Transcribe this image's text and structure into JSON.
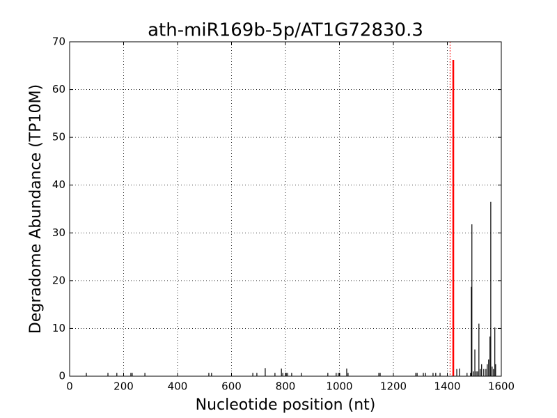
{
  "chart_data": {
    "type": "spike",
    "title": "ath-miR169b-5p/AT1G72830.3",
    "xlabel": "Nucleotide position (nt)",
    "ylabel": "Degradome Abundance (TP10M)",
    "xlim": [
      0,
      1600
    ],
    "xticks": [
      0,
      200,
      400,
      600,
      800,
      1000,
      1200,
      1400,
      1600
    ],
    "ylim": [
      0,
      70
    ],
    "yticks": [
      0,
      10,
      20,
      30,
      40,
      50,
      60,
      70
    ],
    "grid": true,
    "vlines": [
      {
        "x": 1410,
        "color": "#ff0000"
      }
    ],
    "series": [
      {
        "color": "#000000",
        "x": [
          62,
          142,
          175,
          227,
          232,
          279,
          516,
          526,
          679,
          694,
          725,
          761,
          785,
          790,
          803,
          808,
          823,
          859,
          957,
          988,
          996,
          1001,
          1027,
          1032,
          1146,
          1151,
          1283,
          1288,
          1311,
          1319,
          1347,
          1357,
          1373,
          1435,
          1445,
          1473,
          1486,
          1489,
          1491,
          1497,
          1502,
          1507,
          1512,
          1517,
          1522,
          1527,
          1535,
          1543,
          1548,
          1553,
          1558,
          1561,
          1566,
          1571,
          1576,
          1579
        ],
        "values": [
          0.7,
          0.7,
          0.7,
          0.7,
          0.7,
          0.7,
          0.7,
          0.7,
          0.7,
          0.7,
          1.7,
          0.7,
          1.6,
          0.7,
          0.7,
          0.7,
          0.7,
          0.7,
          0.7,
          0.7,
          0.7,
          0.7,
          1.6,
          0.7,
          0.7,
          0.7,
          0.7,
          0.7,
          0.7,
          0.7,
          0.7,
          0.7,
          0.7,
          1.5,
          1.6,
          0.7,
          0.7,
          18.7,
          31.8,
          1,
          5.6,
          1,
          1,
          11,
          1.5,
          2.5,
          1.5,
          1.5,
          2.5,
          3.5,
          8.3,
          36.5,
          2,
          1.5,
          10.2,
          2.5
        ]
      },
      {
        "color": "#ff0000",
        "x": [
          1422
        ],
        "values": [
          66.2
        ]
      }
    ]
  }
}
